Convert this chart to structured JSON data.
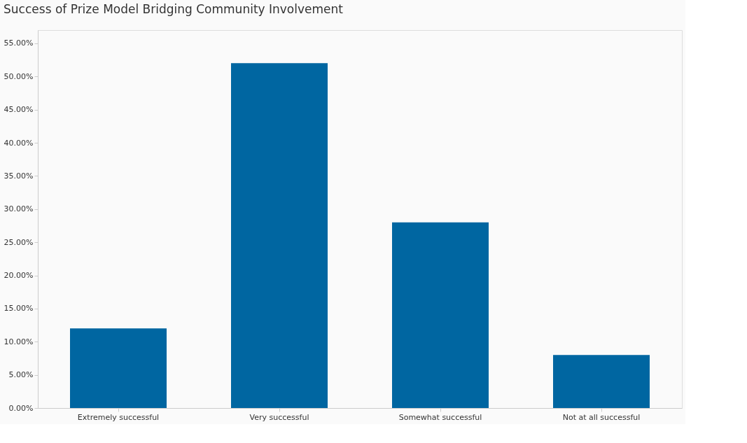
{
  "chart_data": {
    "type": "bar",
    "title": "Success of Prize Model Bridging Community Involvement",
    "categories": [
      "Extremely successful",
      "Very successful",
      "Somewhat successful",
      "Not at all successful"
    ],
    "values": [
      12,
      52,
      28,
      8
    ],
    "color": "#0066a1",
    "ylim": [
      0,
      57
    ],
    "yticks": [
      {
        "value": 0,
        "label": "0.00%"
      },
      {
        "value": 5,
        "label": "5.00%"
      },
      {
        "value": 10,
        "label": "10.00%"
      },
      {
        "value": 15,
        "label": "15.00%"
      },
      {
        "value": 20,
        "label": "20.00%"
      },
      {
        "value": 25,
        "label": "25.00%"
      },
      {
        "value": 30,
        "label": "30.00%"
      },
      {
        "value": 35,
        "label": "35.00%"
      },
      {
        "value": 40,
        "label": "40.00%"
      },
      {
        "value": 45,
        "label": "45.00%"
      },
      {
        "value": 50,
        "label": "50.00%"
      },
      {
        "value": 55,
        "label": "55.00%"
      }
    ],
    "grid": false,
    "legend": false
  }
}
